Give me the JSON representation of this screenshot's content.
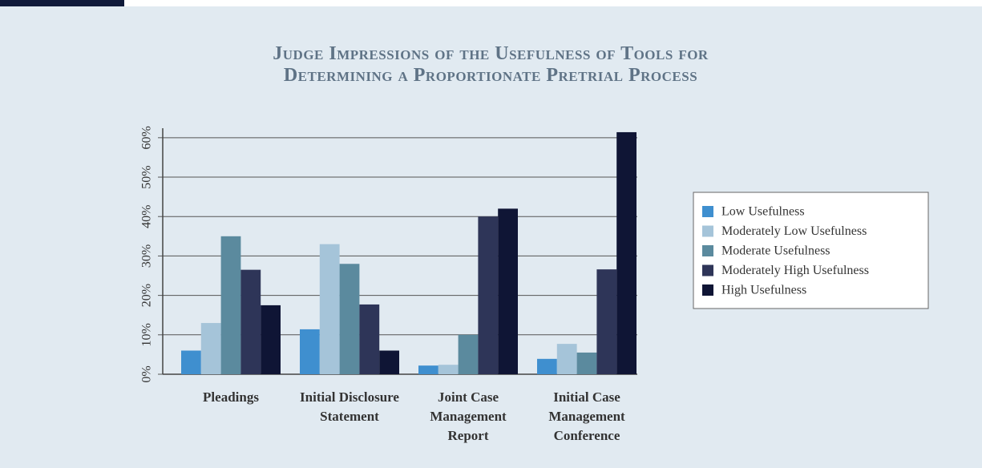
{
  "chart_data": {
    "type": "bar",
    "title": "Judge Impressions of the Usefulness of Tools for\nDetermining a Proportionate Pretrial Process",
    "categories": [
      "Pleadings",
      "Initial Disclosure\nStatement",
      "Joint Case\nManagement\nReport",
      "Initial Case\nManagement\nConference"
    ],
    "series": [
      {
        "name": "Low Usefulness",
        "color": "#3f8fcf",
        "values": [
          6,
          11.4,
          2.2,
          3.9
        ]
      },
      {
        "name": "Moderately Low Usefulness",
        "color": "#a5c4d9",
        "values": [
          13,
          33,
          2.4,
          7.7
        ]
      },
      {
        "name": "Moderate Usefulness",
        "color": "#5b8a9e",
        "values": [
          35,
          28,
          10,
          5.5
        ]
      },
      {
        "name": "Moderately High Usefulness",
        "color": "#2e3558",
        "values": [
          26.5,
          17.7,
          40,
          26.6
        ]
      },
      {
        "name": "High Usefulness",
        "color": "#0f1535",
        "values": [
          17.5,
          6,
          42,
          61.4
        ]
      }
    ],
    "ylim": [
      0,
      62
    ],
    "yticks": [
      {
        "value": 0,
        "label": "0%"
      },
      {
        "value": 10,
        "label": "10%"
      },
      {
        "value": 20,
        "label": "20%"
      },
      {
        "value": 30,
        "label": "30%"
      },
      {
        "value": 40,
        "label": "40%"
      },
      {
        "value": 50,
        "label": "50%"
      },
      {
        "value": 60,
        "label": "60%"
      }
    ],
    "grid": true,
    "legend": "right"
  }
}
